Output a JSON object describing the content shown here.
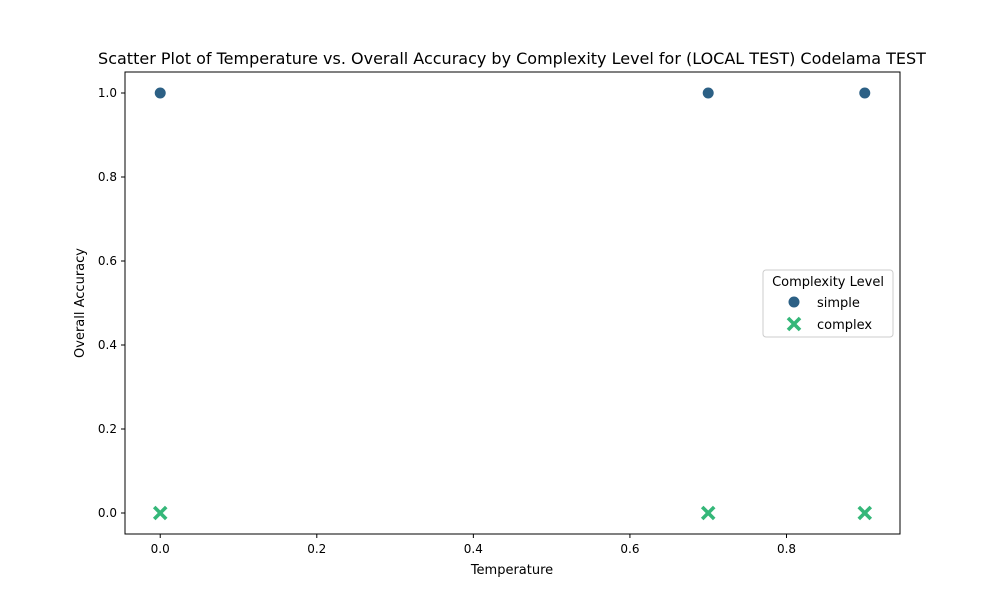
{
  "chart_data": {
    "type": "scatter",
    "title": "Scatter Plot of Temperature vs. Overall Accuracy by Complexity Level for (LOCAL TEST) Codelama TEST",
    "xlabel": "Temperature",
    "ylabel": "Overall Accuracy",
    "xlim": [
      -0.045,
      0.945
    ],
    "ylim": [
      -0.05,
      1.05
    ],
    "x_ticks": [
      0.0,
      0.2,
      0.4,
      0.6,
      0.8
    ],
    "x_tick_labels": [
      "0.0",
      "0.2",
      "0.4",
      "0.6",
      "0.8"
    ],
    "y_ticks": [
      0.0,
      0.2,
      0.4,
      0.6,
      0.8,
      1.0
    ],
    "y_tick_labels": [
      "0.0",
      "0.2",
      "0.4",
      "0.6",
      "0.8",
      "1.0"
    ],
    "grid": false,
    "legend": {
      "title": "Complexity Level",
      "placement": "center-right"
    },
    "series": [
      {
        "name": "simple",
        "marker": "circle",
        "color": "#2c6085",
        "x": [
          0.0,
          0.7,
          0.9
        ],
        "y": [
          1.0,
          1.0,
          1.0
        ]
      },
      {
        "name": "complex",
        "marker": "x",
        "color": "#35b779",
        "x": [
          0.0,
          0.7,
          0.9
        ],
        "y": [
          0.0,
          0.0,
          0.0
        ]
      }
    ]
  }
}
